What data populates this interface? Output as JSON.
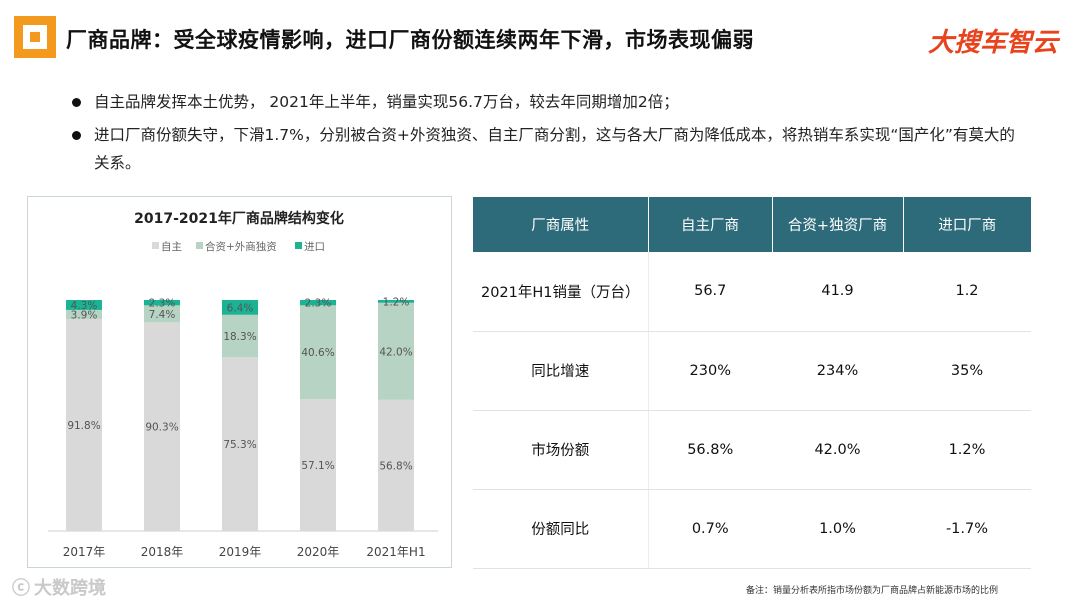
{
  "header": {
    "title": "厂商品牌：受全球疫情影响，进口厂商份额连续两年下滑，市场表现偏弱",
    "brand": "大搜车智云"
  },
  "bullets": [
    "自主品牌发挥本土优势， 2021年上半年，销量实现56.7万台，较去年同期增加2倍；",
    "进口厂商份额失守，下滑1.7%，分别被合资+外资独资、自主厂商分割，这与各大厂商为降低成本，将热销车系实现“国产化”有莫大的关系。"
  ],
  "chart_data": {
    "type": "bar",
    "stacked": true,
    "title": "2017-2021年厂商品牌结构变化",
    "categories": [
      "2017年",
      "2018年",
      "2019年",
      "2020年",
      "2021年H1"
    ],
    "series": [
      {
        "name": "自主",
        "values": [
          91.8,
          90.3,
          75.3,
          57.1,
          56.8
        ],
        "labels": [
          "91.8%",
          "90.3%",
          "75.3%",
          "57.1%",
          "56.8%"
        ],
        "color": "#d9d9d9"
      },
      {
        "name": "合资+外商独资",
        "values": [
          3.9,
          7.4,
          18.3,
          40.6,
          42.0
        ],
        "labels": [
          "3.9%",
          "7.4%",
          "18.3%",
          "40.6%",
          "42.0%"
        ],
        "color": "#b7d3c4"
      },
      {
        "name": "进口",
        "values": [
          4.3,
          2.3,
          6.4,
          2.3,
          1.2
        ],
        "labels": [
          "4.3%",
          "2.3%",
          "6.4%",
          "2.3%",
          "1.2%"
        ],
        "color": "#1ab394"
      }
    ],
    "ylim": [
      0,
      100
    ],
    "legend": "top"
  },
  "table": {
    "headers": [
      "厂商属性",
      "自主厂商",
      "合资+独资厂商",
      "进口厂商"
    ],
    "rows": [
      [
        "2021年H1销量（万台）",
        "56.7",
        "41.9",
        "1.2"
      ],
      [
        "同比增速",
        "230%",
        "234%",
        "35%"
      ],
      [
        "市场份额",
        "56.8%",
        "42.0%",
        "1.2%"
      ],
      [
        "份额同比",
        "0.7%",
        "1.0%",
        "-1.7%"
      ]
    ]
  },
  "footnote": "备注：销量分析表所指市场份额为厂商品牌占新能源市场的比例",
  "watermark": "大数跨境"
}
